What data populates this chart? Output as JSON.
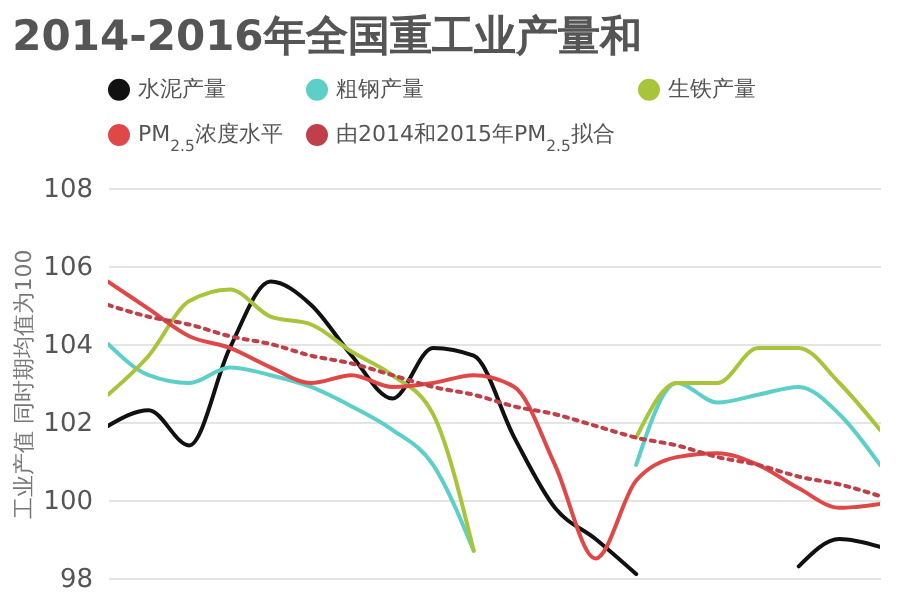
{
  "chart_data": {
    "type": "line",
    "title": "2014-2016年全国重工业产量和",
    "ylabel": "工业产值 同时期均值为100",
    "categories": [
      null,
      null,
      null,
      null,
      null,
      null,
      null,
      null,
      null,
      null,
      null,
      null,
      null,
      null,
      null,
      null,
      null,
      null,
      null,
      null
    ],
    "series": [
      {
        "name": "水泥产量",
        "color": "#111111",
        "values": [
          101.9,
          102.3,
          101.4,
          103.9,
          105.6,
          105.0,
          103.7,
          102.6,
          103.9,
          103.7,
          101.6,
          99.8,
          99.0,
          98.1,
          null,
          null,
          null,
          98.3,
          99.0,
          98.8
        ]
      },
      {
        "name": "粗钢产量",
        "color": "#5ccfc8",
        "values": [
          104.0,
          103.2,
          103.0,
          103.4,
          103.2,
          102.9,
          102.4,
          101.8,
          100.9,
          98.7,
          null,
          null,
          null,
          100.9,
          103.0,
          102.5,
          102.7,
          102.9,
          102.2,
          100.9
        ]
      },
      {
        "name": "生铁产量",
        "color": "#a8c43a",
        "values": [
          102.7,
          103.7,
          105.1,
          105.4,
          104.7,
          104.5,
          103.8,
          103.2,
          102.2,
          98.7,
          null,
          null,
          null,
          101.6,
          103.0,
          103.0,
          103.9,
          103.9,
          103.0,
          101.8
        ]
      },
      {
        "name": "PM$_{2.5}$浓度水平",
        "color": "#e04848",
        "values": [
          105.6,
          104.9,
          104.2,
          103.9,
          103.4,
          103.0,
          103.2,
          102.9,
          103.0,
          103.2,
          102.9,
          100.9,
          98.5,
          100.5,
          101.1,
          101.2,
          100.9,
          100.3,
          99.8,
          99.9
        ]
      },
      {
        "name": "由2014和2015年PM$_{2.5}$拟合",
        "color": "#c0404a",
        "type": "line",
        "line_style": "dotted",
        "values": [
          105.0,
          104.7,
          104.5,
          104.2,
          104.0,
          103.7,
          103.5,
          103.2,
          102.9,
          102.7,
          102.4,
          102.2,
          101.9,
          101.6,
          101.4,
          101.1,
          100.9,
          100.6,
          100.4,
          100.1
        ]
      }
    ],
    "ylim": [
      98,
      108
    ],
    "yticks": [
      98,
      100,
      102,
      104,
      106,
      108
    ],
    "grid": "y",
    "legend": "top",
    "tick_labels": "y"
  }
}
